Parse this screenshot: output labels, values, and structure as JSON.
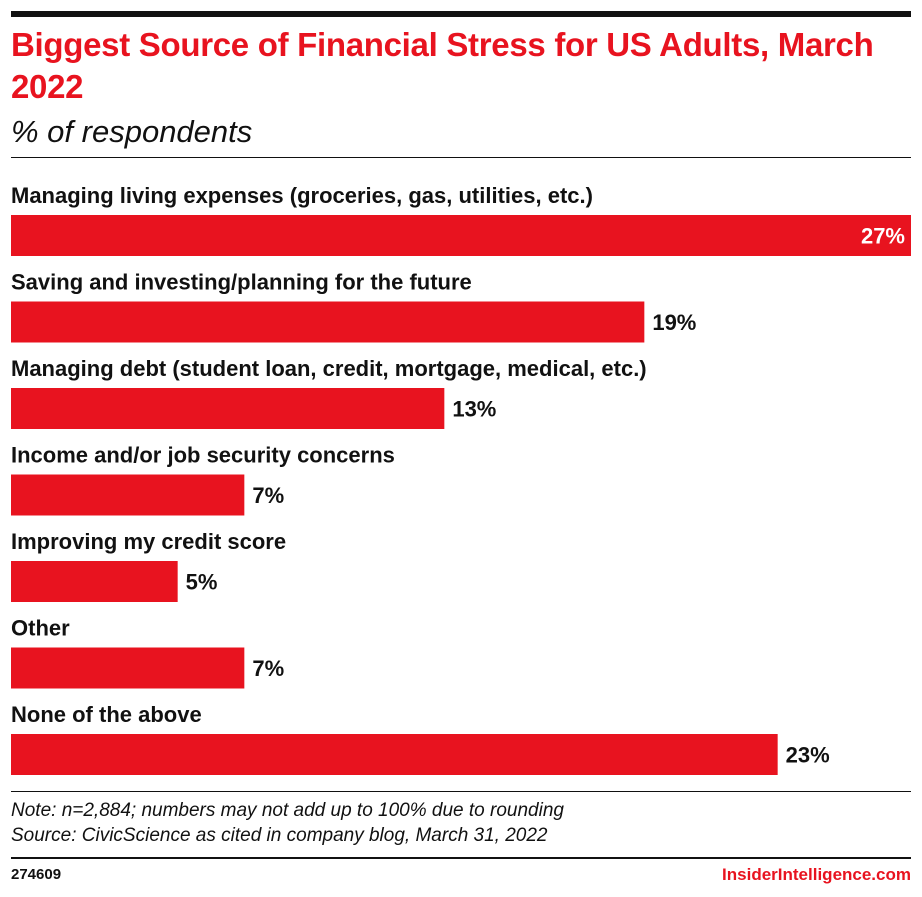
{
  "chart_data": {
    "type": "bar",
    "orientation": "horizontal",
    "title": "Biggest Source of Financial Stress for US Adults, March 2022",
    "subtitle": "% of respondents",
    "categories": [
      "Managing living expenses (groceries, gas, utilities, etc.)",
      "Saving and investing/planning for the future",
      "Managing debt (student loan, credit, mortgage, medical, etc.)",
      "Income and/or job security concerns",
      "Improving my credit score",
      "Other",
      "None of the above"
    ],
    "values": [
      27,
      19,
      13,
      7,
      5,
      7,
      23
    ],
    "value_labels": [
      "27%",
      "19%",
      "13%",
      "7%",
      "5%",
      "7%",
      "23%"
    ],
    "xlim": [
      0,
      27
    ],
    "grid": false,
    "legend": "none",
    "bar_color": "#e8131f"
  },
  "footer": {
    "note": "Note: n=2,884; numbers may not add up to 100% due to rounding",
    "source": "Source: CivicScience as cited in company blog, March 31, 2022",
    "chart_id": "274609",
    "brand": "InsiderIntelligence.com"
  },
  "colors": {
    "accent": "#e8131f",
    "text": "#111111",
    "inside_label": "#ffffff"
  }
}
